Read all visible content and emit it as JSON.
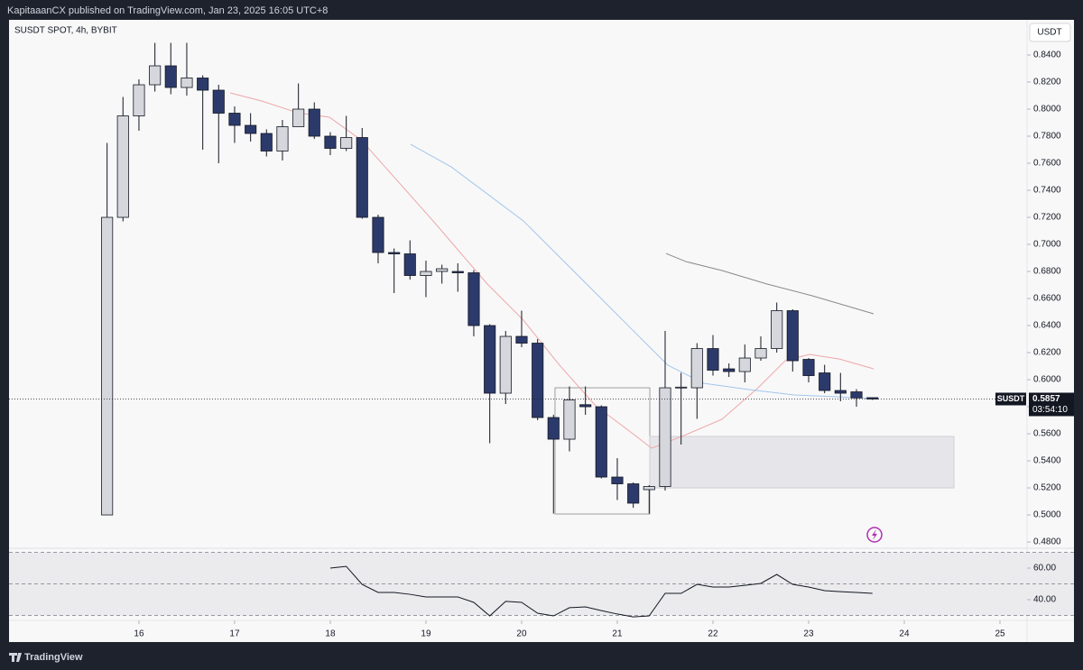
{
  "header": "KapitaaanCX published on TradingView.com, Jan 23, 2025 16:05 UTC+8",
  "footer_brand": "TradingView",
  "chart_data": [
    {
      "type": "candlestick",
      "title": "SUSDT SPOT, 4h, BYBIT",
      "currency": "USDT",
      "symbol": "SUSDT",
      "last_price": 0.5857,
      "countdown": "03:54:10",
      "up_color": "#d6d7dd",
      "down_color": "#2c3a6b",
      "outline_color": "#131722",
      "grid": false,
      "x": [
        15.667,
        15.833,
        16,
        16.167,
        16.333,
        16.5,
        16.667,
        16.833,
        17,
        17.167,
        17.333,
        17.5,
        17.667,
        17.833,
        18,
        18.167,
        18.333,
        18.5,
        18.667,
        18.833,
        19,
        19.167,
        19.333,
        19.5,
        19.667,
        19.833,
        20,
        20.167,
        20.333,
        20.5,
        20.667,
        20.833,
        21,
        21.167,
        21.333,
        21.5,
        21.667,
        21.833,
        22,
        22.167,
        22.333,
        22.5,
        22.667,
        22.833,
        23,
        23.167,
        23.333,
        23.5,
        23.667
      ],
      "open": [
        0.5,
        0.72,
        0.795,
        0.818,
        0.832,
        0.816,
        0.823,
        0.814,
        0.797,
        0.788,
        0.782,
        0.769,
        0.787,
        0.8,
        0.78,
        0.771,
        0.779,
        0.72,
        0.694,
        0.693,
        0.677,
        0.68,
        0.68,
        0.679,
        0.64,
        0.59,
        0.632,
        0.627,
        0.572,
        0.556,
        0.5815,
        0.58,
        0.528,
        0.523,
        0.5187,
        0.521,
        0.594,
        0.594,
        0.623,
        0.608,
        0.606,
        0.616,
        0.623,
        0.651,
        0.615,
        0.605,
        0.592,
        0.591,
        0.5867
      ],
      "high": [
        0.775,
        0.809,
        0.822,
        0.849,
        0.849,
        0.849,
        0.825,
        0.818,
        0.802,
        0.797,
        0.785,
        0.792,
        0.819,
        0.805,
        0.783,
        0.795,
        0.786,
        0.722,
        0.697,
        0.703,
        0.688,
        0.685,
        0.686,
        0.681,
        0.641,
        0.636,
        0.651,
        0.63,
        0.574,
        0.595,
        0.595,
        0.581,
        0.542,
        0.524,
        0.522,
        0.636,
        0.605,
        0.627,
        0.633,
        0.612,
        0.626,
        0.632,
        0.657,
        0.652,
        0.616,
        0.611,
        0.605,
        0.593,
        0.587
      ],
      "low": [
        0.5,
        0.717,
        0.784,
        0.813,
        0.811,
        0.81,
        0.77,
        0.76,
        0.775,
        0.776,
        0.765,
        0.762,
        0.787,
        0.778,
        0.766,
        0.769,
        0.719,
        0.686,
        0.664,
        0.674,
        0.661,
        0.671,
        0.665,
        0.632,
        0.553,
        0.582,
        0.624,
        0.57,
        0.501,
        0.547,
        0.574,
        0.527,
        0.511,
        0.5053,
        0.501,
        0.518,
        0.552,
        0.571,
        0.603,
        0.602,
        0.598,
        0.614,
        0.62,
        0.606,
        0.598,
        0.59,
        0.584,
        0.58,
        0.585
      ],
      "close": [
        0.72,
        0.795,
        0.818,
        0.832,
        0.816,
        0.823,
        0.814,
        0.797,
        0.788,
        0.782,
        0.769,
        0.787,
        0.8,
        0.78,
        0.771,
        0.779,
        0.72,
        0.694,
        0.693,
        0.677,
        0.68,
        0.682,
        0.679,
        0.64,
        0.59,
        0.632,
        0.627,
        0.572,
        0.556,
        0.585,
        0.58,
        0.528,
        0.523,
        0.5087,
        0.521,
        0.594,
        0.5945,
        0.623,
        0.607,
        0.606,
        0.616,
        0.623,
        0.651,
        0.614,
        0.603,
        0.592,
        0.59,
        0.5865,
        0.5857
      ],
      "lines": [
        {
          "color": "#eea6a6",
          "x": [
            16.953,
            17.283,
            17.66,
            17.991,
            18.321,
            18.698,
            19.075,
            19.358,
            19.642,
            20.019,
            20.396,
            20.774,
            21.151,
            21.358,
            21.717,
            22.094,
            22.472,
            22.755,
            23.009,
            23.321,
            23.679
          ],
          "values": [
            0.812,
            0.806,
            0.7973,
            0.794,
            0.7773,
            0.7473,
            0.7173,
            0.694,
            0.6707,
            0.644,
            0.6107,
            0.5807,
            0.5607,
            0.5493,
            0.5593,
            0.5707,
            0.594,
            0.614,
            0.6187,
            0.6153,
            0.608
          ]
        },
        {
          "color": "#a3c6ea",
          "x": [
            18.84,
            19.264,
            19.642,
            20.019,
            20.396,
            20.774,
            21.151,
            21.528,
            21.906,
            22.377,
            22.849,
            23.321,
            23.679
          ],
          "values": [
            0.774,
            0.7573,
            0.7373,
            0.7173,
            0.6907,
            0.664,
            0.6373,
            0.6107,
            0.5973,
            0.5927,
            0.5887,
            0.5873,
            0.586
          ]
        },
        {
          "color": "#8a8a8a",
          "x": [
            21.509,
            21.717,
            22.094,
            22.566,
            23.038,
            23.679
          ],
          "values": [
            0.6933,
            0.6873,
            0.6807,
            0.6707,
            0.662,
            0.6487
          ]
        }
      ],
      "zones": [
        {
          "x": [
            20.349,
            21.34
          ],
          "y": [
            0.5007,
            0.594
          ],
          "fill": "none",
          "stroke": "#9e9e9e"
        },
        {
          "x": [
            21.34,
            24.519
          ],
          "y": [
            0.52,
            0.558
          ],
          "fill": "#e6e6ea",
          "stroke": "#cfcfd4"
        }
      ],
      "xlim": [
        14.642,
        25.283
      ],
      "xticks": [
        16,
        17,
        18,
        19,
        20,
        21,
        22,
        23,
        24,
        25
      ],
      "ylim": [
        0.4767,
        0.866
      ],
      "yticks": [
        {
          "value": 0.48,
          "label": "0.4800"
        },
        {
          "value": 0.5,
          "label": "0.5000"
        },
        {
          "value": 0.52,
          "label": "0.5200"
        },
        {
          "value": 0.54,
          "label": "0.5400"
        },
        {
          "value": 0.56,
          "label": "0.5600"
        },
        {
          "value": 0.58,
          "label": "0.5800"
        },
        {
          "value": 0.6,
          "label": "0.6000"
        },
        {
          "value": 0.62,
          "label": "0.6200"
        },
        {
          "value": 0.64,
          "label": "0.6400"
        },
        {
          "value": 0.66,
          "label": "0.6600"
        },
        {
          "value": 0.68,
          "label": "0.6800"
        },
        {
          "value": 0.7,
          "label": "0.7000"
        },
        {
          "value": 0.72,
          "label": "0.7200"
        },
        {
          "value": 0.74,
          "label": "0.7400"
        },
        {
          "value": 0.76,
          "label": "0.7600"
        },
        {
          "value": 0.78,
          "label": "0.7800"
        },
        {
          "value": 0.8,
          "label": "0.8000"
        },
        {
          "value": 0.82,
          "label": "0.8200"
        },
        {
          "value": 0.84,
          "label": "0.8400"
        }
      ]
    },
    {
      "type": "line",
      "color": "#131722",
      "x": [
        18,
        18.167,
        18.333,
        18.5,
        18.667,
        18.833,
        19,
        19.167,
        19.333,
        19.5,
        19.667,
        19.833,
        20,
        20.167,
        20.333,
        20.5,
        20.667,
        20.833,
        21,
        21.167,
        21.333,
        21.5,
        21.667,
        21.833,
        22,
        22.167,
        22.333,
        22.5,
        22.667,
        22.833,
        23,
        23.167,
        23.333,
        23.5,
        23.667
      ],
      "values": [
        60,
        61.1,
        49.7,
        44.6,
        44.6,
        43.4,
        41.7,
        41.7,
        41.7,
        38.3,
        29.7,
        38.9,
        38.3,
        31.4,
        29.7,
        34.9,
        35.4,
        33.1,
        30.9,
        29.1,
        29.7,
        44,
        44,
        49.7,
        48,
        48,
        49.1,
        50.3,
        56,
        49.7,
        48,
        45.7,
        45.1,
        44.6,
        44
      ],
      "bands": [
        70,
        50,
        30
      ],
      "band_fill": "#ebebed",
      "xlim": [
        14.642,
        25.283
      ],
      "ylim": [
        28,
        70.3
      ],
      "yticks": [
        {
          "value": 40,
          "label": "40.00"
        },
        {
          "value": 60,
          "label": "60.00"
        }
      ]
    }
  ]
}
